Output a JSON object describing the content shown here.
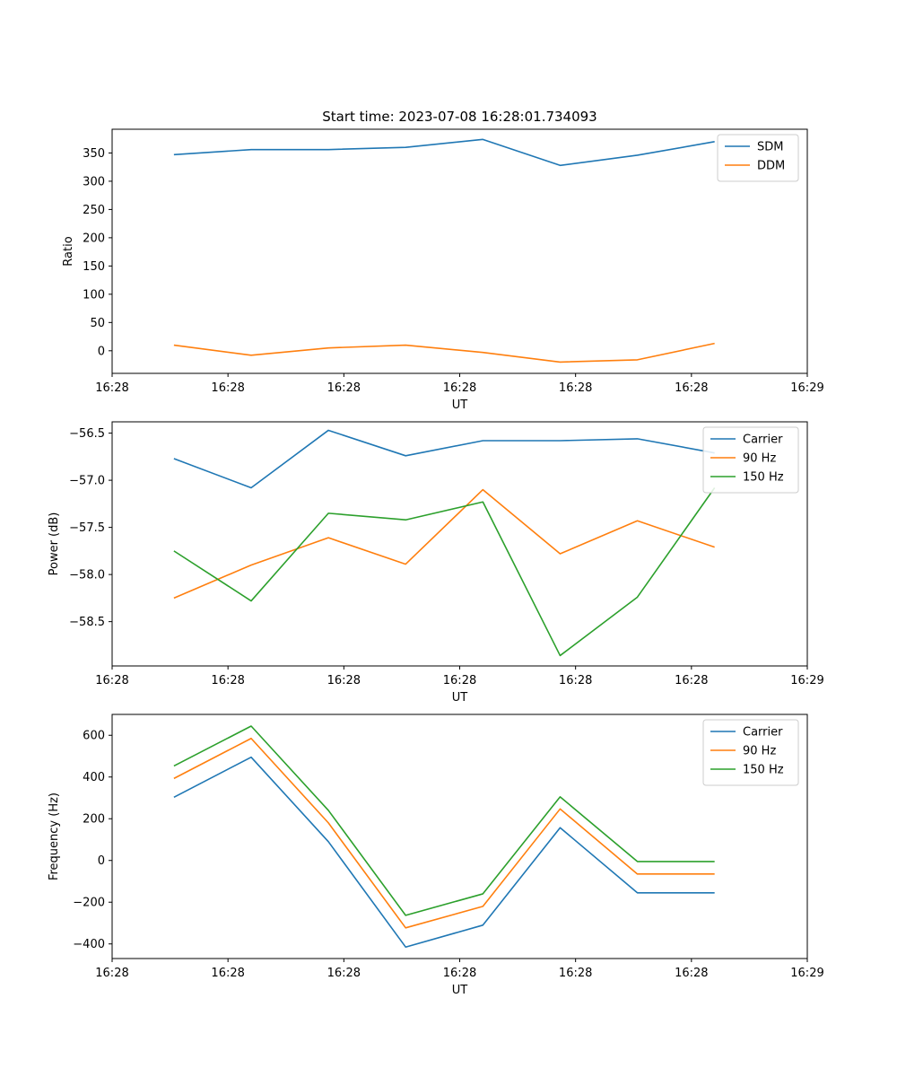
{
  "title": "Start time: 2023-07-08 16:28:01.734093",
  "colors": {
    "blue": "#1f77b4",
    "orange": "#ff7f0e",
    "green": "#2ca02c"
  },
  "chart_data": [
    {
      "type": "line",
      "title": "Start time: 2023-07-08 16:28:01.734093",
      "xlabel": "UT",
      "ylabel": "Ratio",
      "x": [
        1,
        2,
        3,
        4,
        5,
        6,
        7,
        8
      ],
      "xlim": [
        0.2,
        9.2
      ],
      "xticks": [
        0.2,
        1.7,
        3.2,
        4.7,
        6.2,
        7.7,
        9.2
      ],
      "xticklabels": [
        "16:28",
        "16:28",
        "16:28",
        "16:28",
        "16:28",
        "16:28",
        "16:29"
      ],
      "ylim": [
        -40,
        392
      ],
      "yticks": [
        0,
        50,
        100,
        150,
        200,
        250,
        300,
        350
      ],
      "yticklabels": [
        "0",
        "50",
        "100",
        "150",
        "200",
        "250",
        "300",
        "350"
      ],
      "legend": "top-right",
      "series": [
        {
          "name": "SDM",
          "color": "blue",
          "values": [
            347,
            356,
            356,
            360,
            374,
            328,
            346,
            370
          ]
        },
        {
          "name": "DDM",
          "color": "orange",
          "values": [
            10,
            -8,
            5,
            10,
            -3,
            -20,
            -16,
            13
          ]
        }
      ]
    },
    {
      "type": "line",
      "title": "",
      "xlabel": "UT",
      "ylabel": "Power (dB)",
      "x": [
        1,
        2,
        3,
        4,
        5,
        6,
        7,
        8
      ],
      "xlim": [
        0.2,
        9.2
      ],
      "xticks": [
        0.2,
        1.7,
        3.2,
        4.7,
        6.2,
        7.7,
        9.2
      ],
      "xticklabels": [
        "16:28",
        "16:28",
        "16:28",
        "16:28",
        "16:28",
        "16:28",
        "16:29"
      ],
      "ylim": [
        -58.97,
        -56.38
      ],
      "yticks": [
        -58.5,
        -58.0,
        -57.5,
        -57.0,
        -56.5
      ],
      "yticklabels": [
        "−58.5",
        "−58.0",
        "−57.5",
        "−57.0",
        "−56.5"
      ],
      "legend": "top-right",
      "series": [
        {
          "name": "Carrier",
          "color": "blue",
          "values": [
            -56.77,
            -57.08,
            -56.47,
            -56.74,
            -56.58,
            -56.58,
            -56.56,
            -56.71
          ]
        },
        {
          "name": "90 Hz",
          "color": "orange",
          "values": [
            -58.25,
            -57.9,
            -57.61,
            -57.89,
            -57.1,
            -57.78,
            -57.43,
            -57.71
          ]
        },
        {
          "name": "150 Hz",
          "color": "green",
          "values": [
            -57.75,
            -58.28,
            -57.35,
            -57.42,
            -57.23,
            -58.86,
            -58.24,
            -57.08
          ]
        }
      ]
    },
    {
      "type": "line",
      "title": "",
      "xlabel": "UT",
      "ylabel": "Frequency (Hz)",
      "x": [
        1,
        2,
        3,
        4,
        5,
        6,
        7,
        8
      ],
      "xlim": [
        0.2,
        9.2
      ],
      "xticks": [
        0.2,
        1.7,
        3.2,
        4.7,
        6.2,
        7.7,
        9.2
      ],
      "xticklabels": [
        "16:28",
        "16:28",
        "16:28",
        "16:28",
        "16:28",
        "16:28",
        "16:29"
      ],
      "ylim": [
        -470,
        700
      ],
      "yticks": [
        -400,
        -200,
        0,
        200,
        400,
        600
      ],
      "yticklabels": [
        "−400",
        "−200",
        "0",
        "200",
        "400",
        "600"
      ],
      "legend": "top-right",
      "series": [
        {
          "name": "Carrier",
          "color": "blue",
          "values": [
            303,
            495,
            90,
            -415,
            -310,
            157,
            -155,
            -155
          ]
        },
        {
          "name": "90 Hz",
          "color": "orange",
          "values": [
            393,
            585,
            180,
            -323,
            -220,
            247,
            -65,
            -65
          ]
        },
        {
          "name": "150 Hz",
          "color": "green",
          "values": [
            453,
            644,
            240,
            -263,
            -160,
            305,
            -5,
            -5
          ]
        }
      ]
    }
  ]
}
